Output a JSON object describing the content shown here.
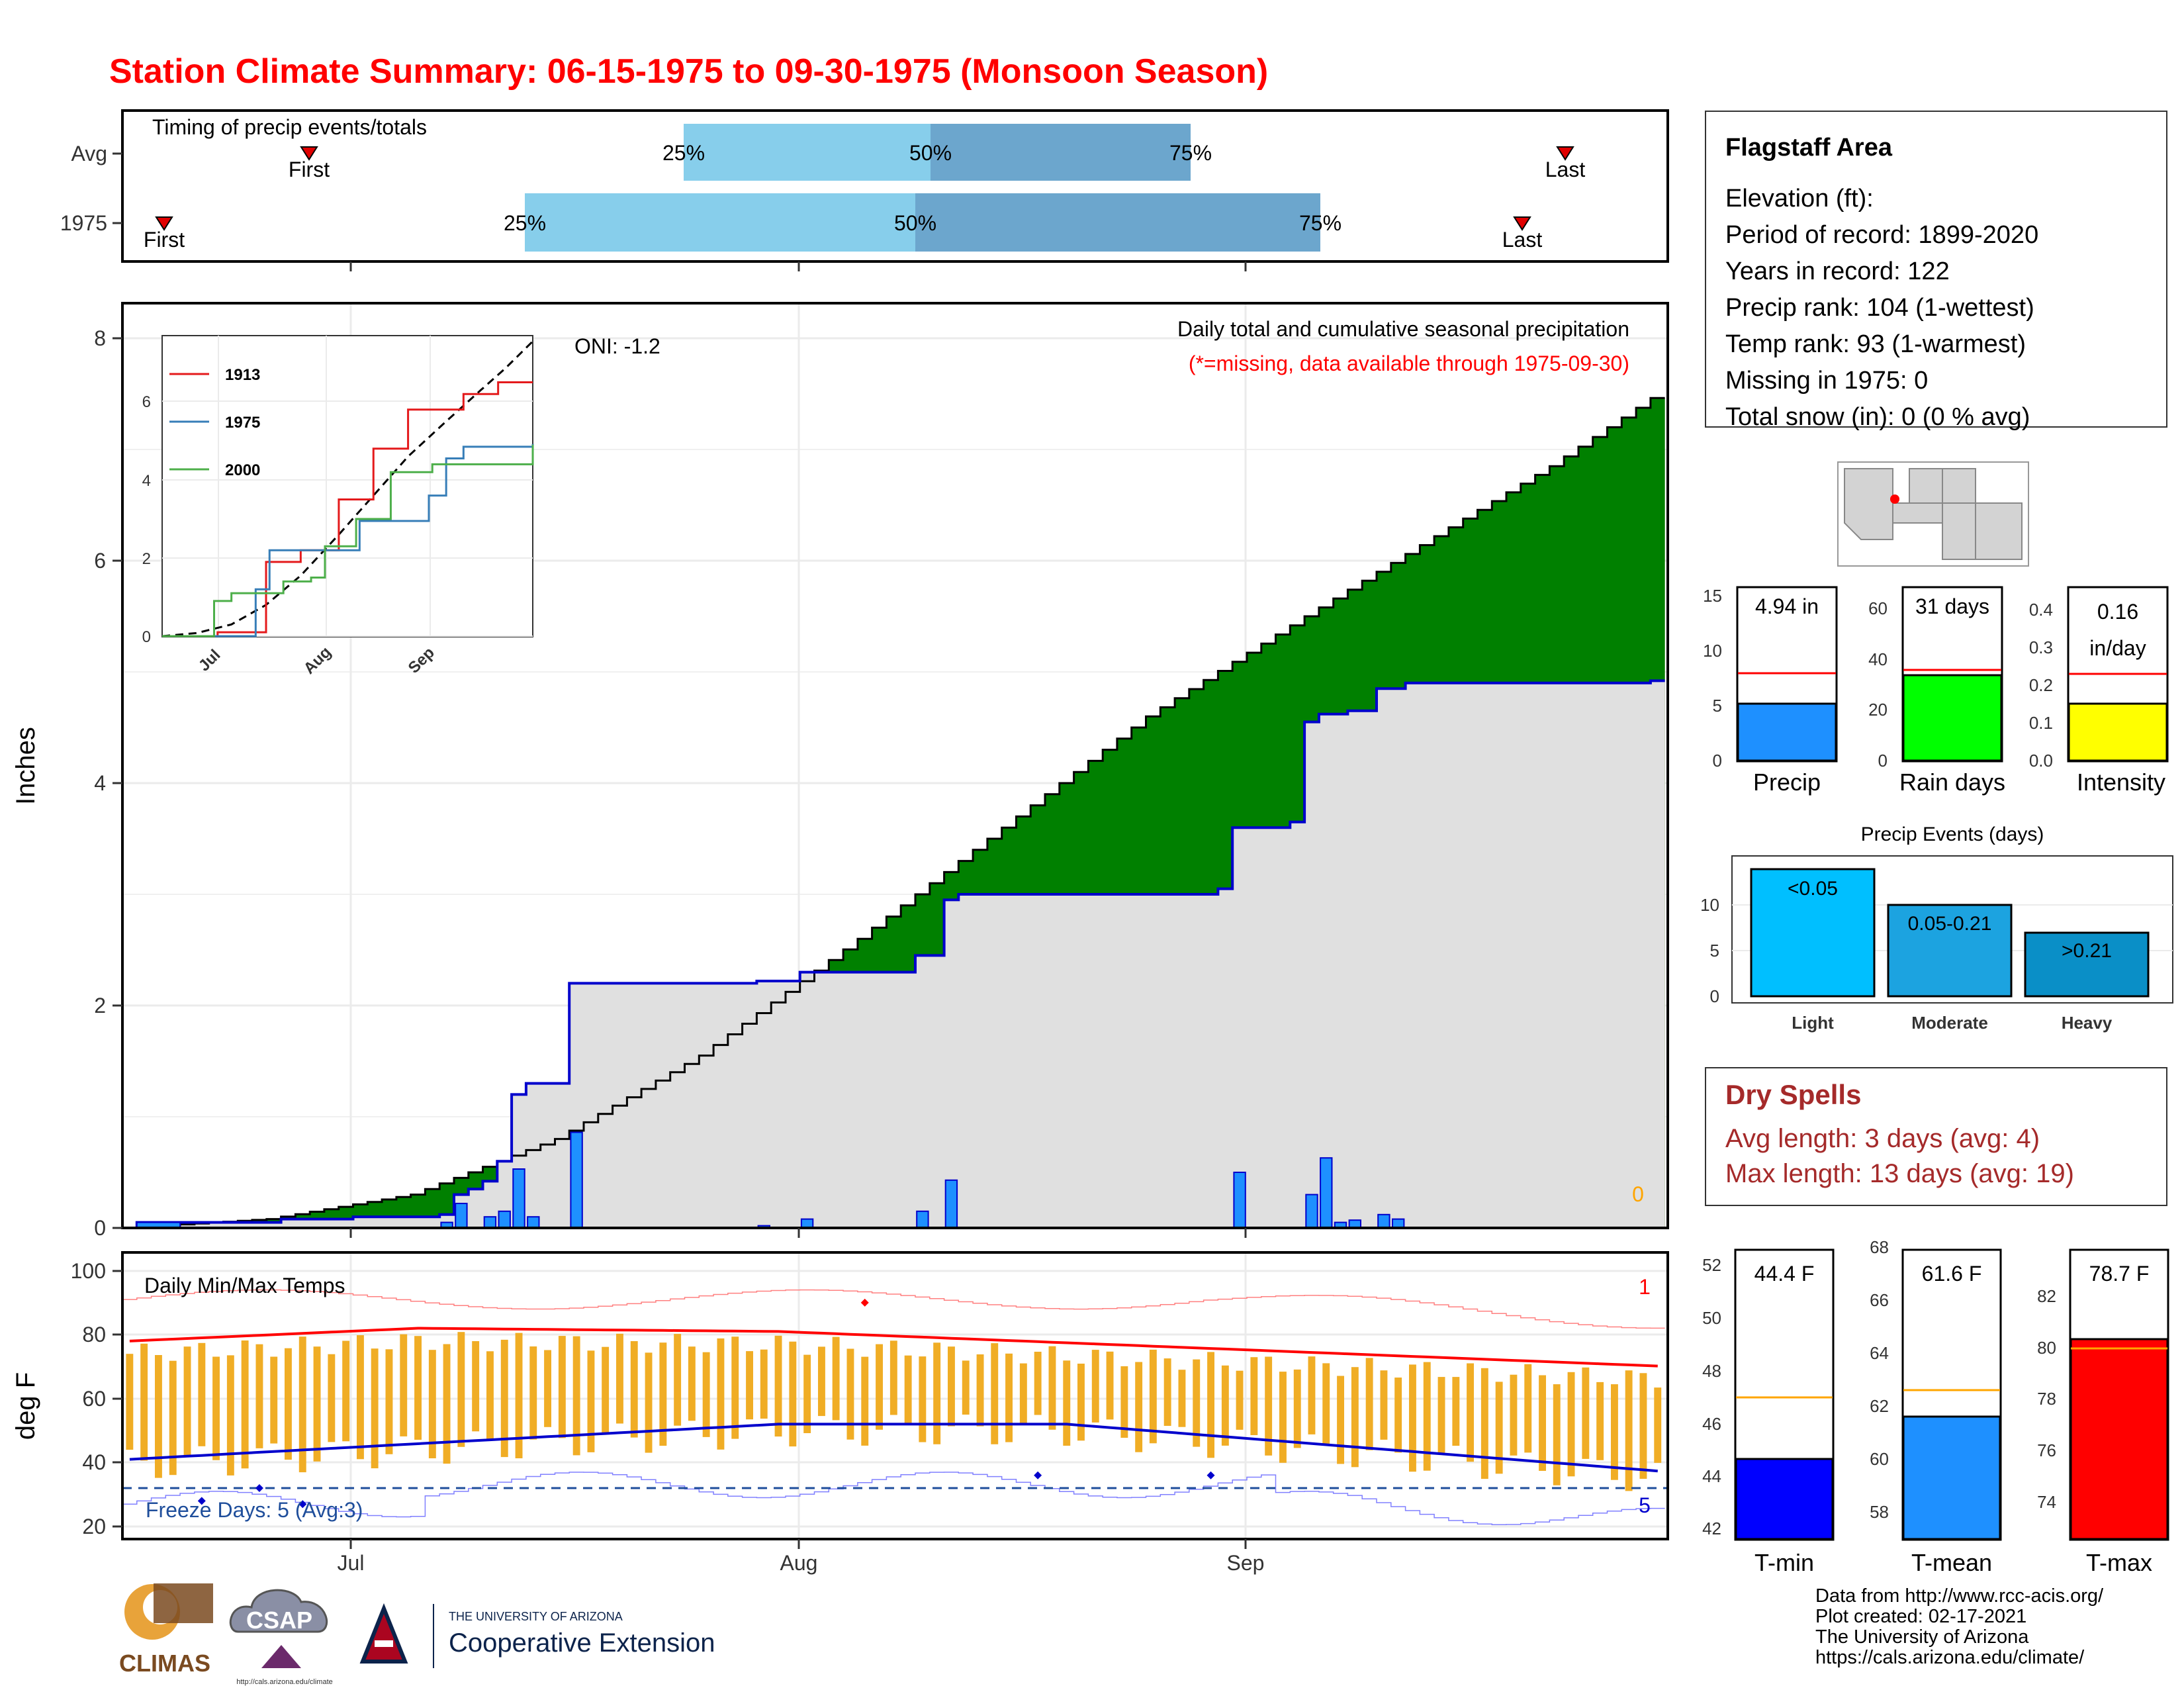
{
  "title": "Station Climate Summary: 06-15-1975 to 09-30-1975 (Monsoon Season)",
  "colors": {
    "title": "#ff0000",
    "brown": "#8b5a00",
    "green": "#008000",
    "gray": "#e0e0e0",
    "blue": "#0000cc",
    "bar_blue": "#1e90ff",
    "q_light": "#87ceeb",
    "q_dark": "#6ca6cd",
    "orange": "#f0ad25",
    "red": "#ff0000",
    "drybrown": "#a52a2a"
  },
  "timing": {
    "title": "Timing of precip events/totals",
    "rows": [
      {
        "label": "Avg",
        "first": "First",
        "last": "Last",
        "p25": "25%",
        "p50": "50%",
        "p75": "75%"
      },
      {
        "label": "1975",
        "first": "First",
        "last": "Last",
        "p25": "25%",
        "p50": "50%",
        "p75": "75%"
      }
    ]
  },
  "precip": {
    "ylabel": "Inches",
    "title": "Daily total and cumulative seasonal precipitation",
    "subtitle": "(*=missing, data available through 1975-09-30)",
    "oni": "ONI: -1.2",
    "missing_count": "0",
    "yticks": [
      "0",
      "2",
      "4",
      "6",
      "8"
    ],
    "months": [
      "Jul",
      "Aug",
      "Sep"
    ]
  },
  "chart_data": [
    {
      "type": "area",
      "title": "Daily total and cumulative seasonal precipitation",
      "ylabel": "Inches",
      "ylim": [
        0,
        8.3
      ],
      "x_range": [
        "1975-06-15",
        "1975-09-30"
      ],
      "series": [
        {
          "name": "avg_cumulative",
          "points": [
            [
              "06-15",
              0
            ],
            [
              "06-25",
              0.08
            ],
            [
              "07-05",
              0.3
            ],
            [
              "07-15",
              0.8
            ],
            [
              "07-25",
              1.55
            ],
            [
              "08-05",
              2.6
            ],
            [
              "08-15",
              3.6
            ],
            [
              "08-25",
              4.6
            ],
            [
              "09-05",
              5.5
            ],
            [
              "09-15",
              6.3
            ],
            [
              "09-22",
              6.85
            ],
            [
              "09-30",
              7.55
            ]
          ]
        },
        {
          "name": "1975_cumulative",
          "points": [
            [
              "06-15",
              0
            ],
            [
              "06-16",
              0.05
            ],
            [
              "06-26",
              0.08
            ],
            [
              "07-01",
              0.1
            ],
            [
              "07-07",
              0.12
            ],
            [
              "07-08",
              0.3
            ],
            [
              "07-09",
              0.35
            ],
            [
              "07-10",
              0.42
            ],
            [
              "07-11",
              0.6
            ],
            [
              "07-12",
              1.2
            ],
            [
              "07-13",
              1.3
            ],
            [
              "07-15",
              1.3
            ],
            [
              "07-16",
              2.2
            ],
            [
              "07-28",
              2.2
            ],
            [
              "07-29",
              2.22
            ],
            [
              "08-01",
              2.3
            ],
            [
              "08-07",
              2.3
            ],
            [
              "08-09",
              2.45
            ],
            [
              "08-11",
              2.95
            ],
            [
              "08-12",
              3.0
            ],
            [
              "08-20",
              3.0
            ],
            [
              "08-30",
              3.05
            ],
            [
              "08-31",
              3.6
            ],
            [
              "09-04",
              3.65
            ],
            [
              "09-05",
              4.55
            ],
            [
              "09-06",
              4.62
            ],
            [
              "09-08",
              4.65
            ],
            [
              "09-10",
              4.85
            ],
            [
              "09-12",
              4.9
            ],
            [
              "09-29",
              4.92
            ]
          ]
        },
        {
          "name": "1975_daily",
          "points": [
            [
              "07-07",
              0.05
            ],
            [
              "07-08",
              0.22
            ],
            [
              "07-10",
              0.1
            ],
            [
              "07-11",
              0.15
            ],
            [
              "07-12",
              0.53
            ],
            [
              "07-13",
              0.1
            ],
            [
              "07-16",
              0.86
            ],
            [
              "07-29",
              0.02
            ],
            [
              "08-01",
              0.08
            ],
            [
              "08-09",
              0.15
            ],
            [
              "08-11",
              0.43
            ],
            [
              "08-31",
              0.5
            ],
            [
              "09-05",
              0.3
            ],
            [
              "09-06",
              0.63
            ],
            [
              "09-07",
              0.05
            ],
            [
              "09-08",
              0.07
            ],
            [
              "09-10",
              0.12
            ],
            [
              "09-11",
              0.08
            ]
          ]
        }
      ]
    },
    {
      "type": "line",
      "title": "",
      "ylim": [
        0,
        8
      ],
      "series": [
        {
          "name": "1913",
          "points": [
            [
              "06-15",
              0
            ],
            [
              "07-01",
              0.1
            ],
            [
              "07-15",
              1.9
            ],
            [
              "07-25",
              2.2
            ],
            [
              "08-05",
              3.5
            ],
            [
              "08-15",
              4.8
            ],
            [
              "08-25",
              5.8
            ],
            [
              "09-10",
              6.2
            ],
            [
              "09-20",
              6.5
            ],
            [
              "09-30",
              6.5
            ]
          ]
        },
        {
          "name": "1975",
          "points": [
            [
              "06-15",
              0
            ],
            [
              "07-12",
              1.2
            ],
            [
              "07-16",
              2.2
            ],
            [
              "07-29",
              2.2
            ],
            [
              "08-11",
              2.95
            ],
            [
              "08-31",
              3.6
            ],
            [
              "09-05",
              4.55
            ],
            [
              "09-10",
              4.85
            ],
            [
              "09-30",
              4.92
            ]
          ]
        },
        {
          "name": "2000",
          "points": [
            [
              "06-15",
              0
            ],
            [
              "06-30",
              0.9
            ],
            [
              "07-05",
              1.1
            ],
            [
              "07-20",
              1.4
            ],
            [
              "07-28",
              1.5
            ],
            [
              "08-01",
              2.3
            ],
            [
              "08-10",
              3.0
            ],
            [
              "08-20",
              4.2
            ],
            [
              "09-01",
              4.4
            ],
            [
              "09-30",
              4.9
            ]
          ]
        }
      ]
    },
    {
      "type": "bar",
      "title": "Daily Min/Max Temps",
      "ylabel": "deg F",
      "ylim": [
        18,
        100
      ],
      "series": [
        {
          "name": "avg_max",
          "values_approx": "78 rising to 82 in early July, easing to 70 at end of September"
        },
        {
          "name": "avg_min",
          "values_approx": "41 rising to 52 in late July/August, falling to 37 at end of September"
        },
        {
          "name": "freeze_line",
          "value": 32
        }
      ]
    },
    {
      "type": "bar",
      "categories": [
        "Precip"
      ],
      "values": [
        4.94
      ],
      "avg": 7.8,
      "ylim": [
        0,
        15
      ],
      "label": "4.94 in"
    },
    {
      "type": "bar",
      "categories": [
        "Rain days"
      ],
      "values": [
        31
      ],
      "avg": 33,
      "ylim": [
        0,
        62
      ],
      "label": "31 days"
    },
    {
      "type": "bar",
      "categories": [
        "Intensity"
      ],
      "values": [
        0.16
      ],
      "avg": 0.235,
      "ylim": [
        0,
        0.45
      ],
      "label": "0.16 in/day"
    },
    {
      "type": "bar",
      "title": "Precip Events (days)",
      "categories": [
        "Light",
        "Moderate",
        "Heavy"
      ],
      "values": [
        14,
        10,
        7
      ],
      "labels": [
        "<0.05",
        "0.05-0.21",
        ">0.21"
      ],
      "ylim": [
        0,
        15
      ]
    },
    {
      "type": "bar",
      "categories": [
        "T-min"
      ],
      "values": [
        44.4
      ],
      "avg": 46.9,
      "ylim": [
        41.5,
        52.3
      ],
      "label": "44.4 F"
    },
    {
      "type": "bar",
      "categories": [
        "T-mean"
      ],
      "values": [
        61.6
      ],
      "avg": 62.6,
      "ylim": [
        57.2,
        68.1
      ],
      "label": "61.6 F"
    },
    {
      "type": "bar",
      "categories": [
        "T-max"
      ],
      "values": [
        78.7
      ],
      "avg": 78.3,
      "ylim": [
        72.6,
        84.8
      ],
      "label": "78.7 F"
    }
  ],
  "inset": {
    "legend": [
      "1913",
      "1975",
      "2000"
    ],
    "yticks": [
      "0",
      "2",
      "4",
      "6"
    ],
    "months": [
      "Jul",
      "Aug",
      "Sep"
    ]
  },
  "temps": {
    "title": "Daily Min/Max Temps",
    "ylabel": "deg F",
    "yticks": [
      "20",
      "40",
      "60",
      "80",
      "100"
    ],
    "freeze": "Freeze Days: 5 (Avg:3)",
    "count_max": "1",
    "count_min": "5",
    "months": [
      "Jul",
      "Aug",
      "Sep"
    ]
  },
  "info": {
    "name": "Flagstaff Area",
    "lines": [
      "Elevation (ft):",
      "Period of record: 1899-2020",
      "Years in record: 122",
      "Precip rank: 104 (1-wettest)",
      "Temp rank: 93 (1-warmest)",
      "Missing in 1975: 0",
      "Total snow (in): 0 (0 % avg)"
    ]
  },
  "mini_precip": {
    "precip": {
      "label": "Precip",
      "value": "4.94 in",
      "ticks": [
        "0",
        "5",
        "10",
        "15"
      ]
    },
    "raindays": {
      "label": "Rain days",
      "value": "31 days",
      "ticks": [
        "0",
        "20",
        "40",
        "60"
      ]
    },
    "intensity": {
      "label": "Intensity",
      "value1": "0.16",
      "value2": "in/day",
      "ticks": [
        "0.0",
        "0.1",
        "0.2",
        "0.3",
        "0.4"
      ]
    }
  },
  "events": {
    "title": "Precip Events (days)",
    "ticks": [
      "0",
      "5",
      "10"
    ],
    "bars": [
      {
        "cat": "Light",
        "lab": "<0.05"
      },
      {
        "cat": "Moderate",
        "lab": "0.05-0.21"
      },
      {
        "cat": "Heavy",
        "lab": ">0.21"
      }
    ]
  },
  "dry": {
    "title": "Dry Spells",
    "avg": "Avg length: 3 days (avg: 4)",
    "max": "Max length: 13 days (avg: 19)"
  },
  "mini_temp": {
    "tmin": {
      "label": "T-min",
      "value": "44.4 F",
      "ticks": [
        "42",
        "44",
        "46",
        "48",
        "50",
        "52"
      ]
    },
    "tmean": {
      "label": "T-mean",
      "value": "61.6 F",
      "ticks": [
        "58",
        "60",
        "62",
        "64",
        "66",
        "68"
      ]
    },
    "tmax": {
      "label": "T-max",
      "value": "78.7 F",
      "ticks": [
        "74",
        "76",
        "78",
        "80",
        "82"
      ]
    }
  },
  "footer": {
    "lines": [
      "Data from http://www.rcc-acis.org/",
      "Plot created: 02-17-2021",
      "The University of Arizona",
      "https://cals.arizona.edu/climate/"
    ],
    "climas": "CLIMAS",
    "csap": "CSAP",
    "csap_url": "http://cals.arizona.edu/climate",
    "ua_small": "THE UNIVERSITY OF ARIZONA",
    "ua_big": "Cooperative Extension"
  }
}
